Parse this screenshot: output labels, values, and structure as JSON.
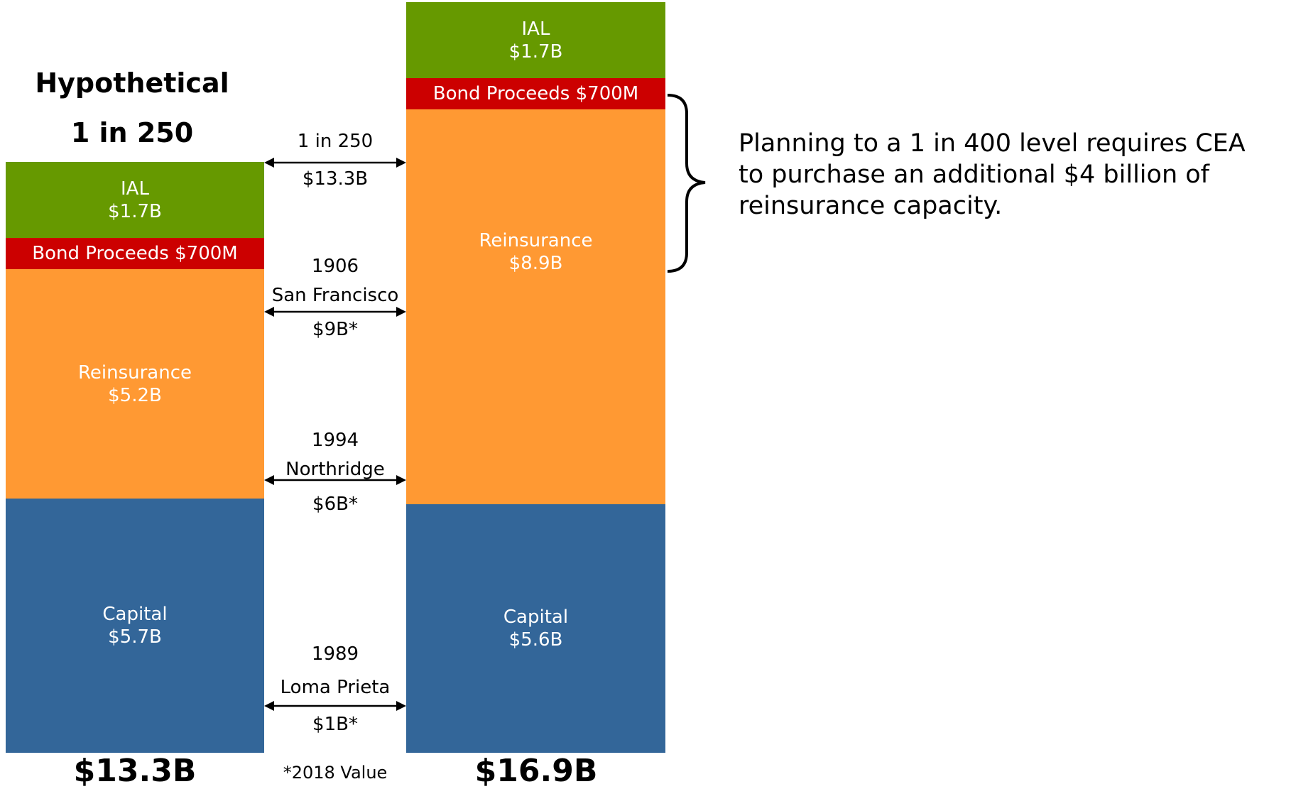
{
  "chart_data": {
    "type": "bar",
    "stacked": true,
    "categories": [
      "Hypothetical 1 in 250",
      "1 in 400"
    ],
    "colors": {
      "Capital": "#336699",
      "Reinsurance": "#FF9933",
      "Bond Proceeds": "#CC0000",
      "IAL": "#669900"
    },
    "series": [
      {
        "name": "Capital",
        "values": [
          5.7,
          5.6
        ]
      },
      {
        "name": "Reinsurance",
        "values": [
          5.2,
          8.9
        ]
      },
      {
        "name": "Bond Proceeds",
        "values": [
          0.7,
          0.7
        ]
      },
      {
        "name": "IAL",
        "values": [
          1.7,
          1.7
        ]
      }
    ],
    "left_bar": {
      "title_line1": "Hypothetical",
      "title_line2": "1 in 250",
      "total": "$13.3B",
      "segments": {
        "ial": {
          "name": "IAL",
          "value": "$1.7B"
        },
        "bond": {
          "text": "Bond Proceeds $700M"
        },
        "reinsurance": {
          "name": "Reinsurance",
          "value": "$5.2B"
        },
        "capital": {
          "name": "Capital",
          "value": "$5.7B"
        }
      }
    },
    "right_bar": {
      "total": "$16.9B",
      "segments": {
        "ial": {
          "name": "IAL",
          "value": "$1.7B"
        },
        "bond": {
          "text": "Bond Proceeds $700M"
        },
        "reinsurance": {
          "name": "Reinsurance",
          "value": "$8.9B"
        },
        "capital": {
          "name": "Capital",
          "value": "$5.6B"
        }
      }
    },
    "events": [
      {
        "line1": "1 in 250",
        "line2": "",
        "value": "$13.3B",
        "amount": 13.3
      },
      {
        "line1": "1906",
        "line2": "San Francisco",
        "value": "$9B*",
        "amount": 9
      },
      {
        "line1": "1994",
        "line2": "Northridge",
        "value": "$6B*",
        "amount": 6
      },
      {
        "line1": "1989",
        "line2": "Loma Prieta",
        "value": "$1B*",
        "amount": 1
      }
    ],
    "footnote": "*2018 Value",
    "annotation": {
      "line1": "Planning to a 1 in 400 level requires CEA",
      "line2": "to purchase an additional $4 billion of",
      "line3": "reinsurance capacity."
    }
  }
}
